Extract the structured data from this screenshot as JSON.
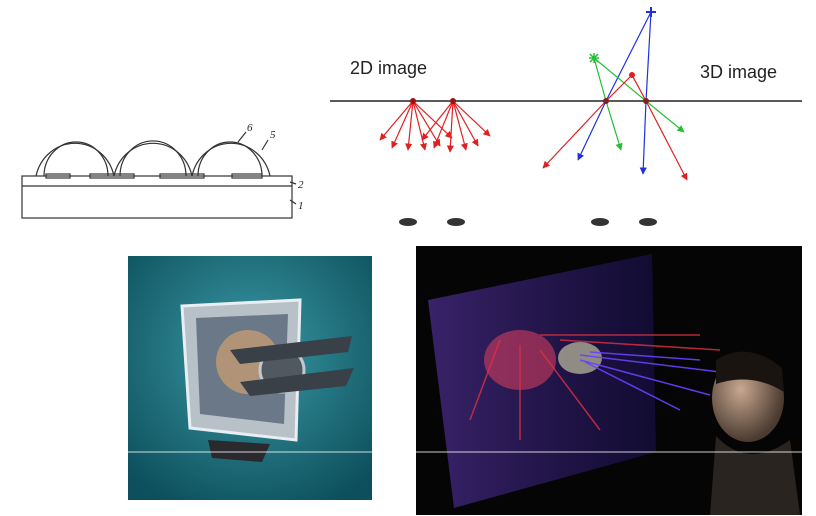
{
  "patent_figure": {
    "labels": [
      "6",
      "5",
      "2",
      "1"
    ]
  },
  "display_diagram": {
    "left_label": "2D image",
    "right_label": "3D image"
  }
}
